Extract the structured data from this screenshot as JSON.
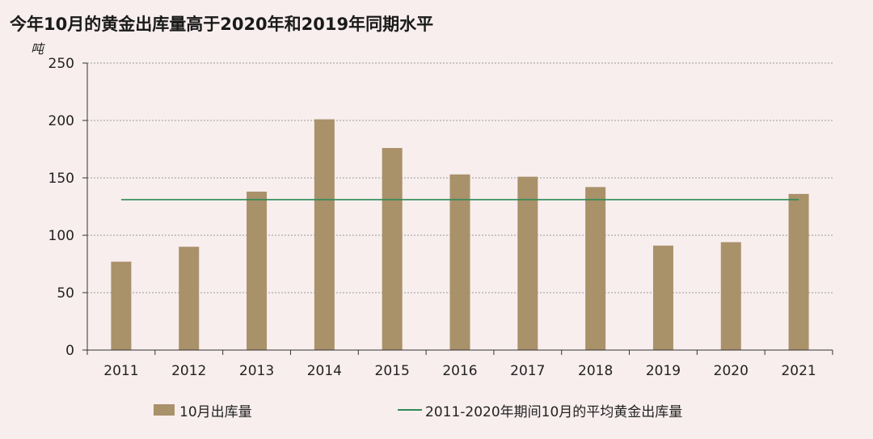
{
  "colors": {
    "bar": "#a9916a",
    "avg_line": "#2e8b57",
    "grid": "#9a9a9a",
    "axis": "#333333"
  },
  "chart_data": {
    "type": "bar",
    "title": "今年10月的黄金出库量高于2020年和2019年同期水平",
    "ylabel": "吨",
    "xlabel": "",
    "categories": [
      "2011",
      "2012",
      "2013",
      "2014",
      "2015",
      "2016",
      "2017",
      "2018",
      "2019",
      "2020",
      "2021"
    ],
    "series": [
      {
        "name": "10月出库量",
        "values": [
          77,
          90,
          138,
          201,
          176,
          153,
          151,
          142,
          91,
          94,
          136
        ]
      }
    ],
    "reference_lines": [
      {
        "name": "2011-2020年期间10月的平均黄金出库量",
        "value": 131
      }
    ],
    "ylim": [
      0,
      250
    ],
    "yticks": [
      "0",
      "50",
      "100",
      "150",
      "200",
      "250"
    ],
    "grid": true,
    "legend_position": "bottom"
  }
}
